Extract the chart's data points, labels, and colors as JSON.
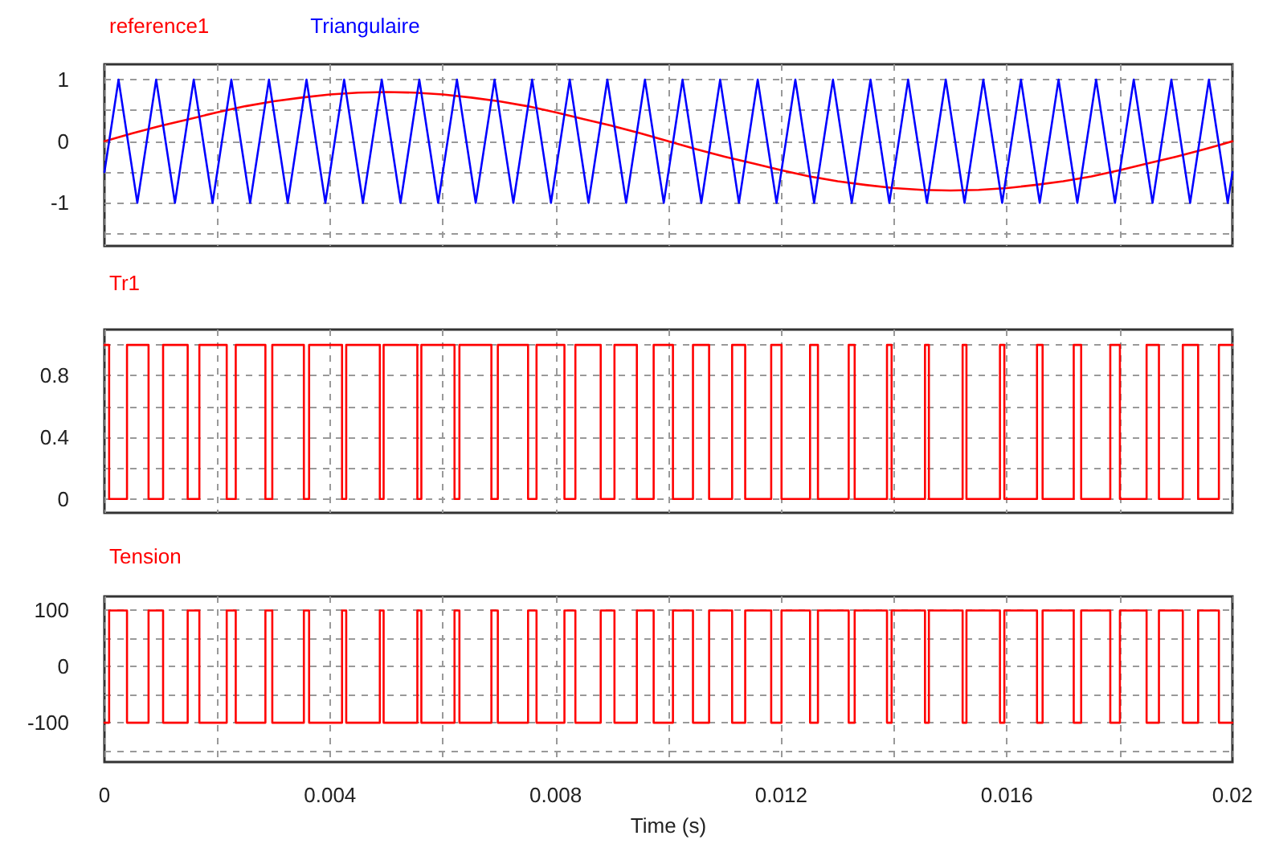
{
  "chart_data": [
    {
      "type": "line",
      "legend": "top left",
      "grid": true,
      "tick_labels": "y",
      "line_style": "solid",
      "xlim": [
        0,
        0.02
      ],
      "xticks": [
        0,
        {
          "value": 0.002,
          "label": null
        },
        {
          "value": 0.004,
          "label": null
        },
        {
          "value": 0.006,
          "label": null
        },
        {
          "value": 0.008,
          "label": null
        },
        {
          "value": 0.01,
          "label": null
        },
        {
          "value": 0.012,
          "label": null
        },
        {
          "value": 0.014,
          "label": null
        },
        {
          "value": 0.016,
          "label": null
        },
        {
          "value": 0.018,
          "label": null
        },
        {
          "value": 0.02,
          "label": null
        }
      ],
      "ylim": [
        -1.7,
        1.25
      ],
      "yticks": [
        {
          "value": -1.5,
          "label": null
        },
        -1,
        {
          "value": -0.5,
          "label": null
        },
        0,
        {
          "value": 0.5,
          "label": null
        },
        1
      ],
      "series": [
        {
          "name": "reference1",
          "color": "#ff0000",
          "x": [
            0,
            0.0005,
            0.001,
            0.0015,
            0.002,
            0.0025,
            0.003,
            0.0035,
            0.004,
            0.0045,
            0.005,
            0.0055,
            0.006,
            0.0065,
            0.007,
            0.0075,
            0.008,
            0.0085,
            0.009,
            0.0095,
            0.01,
            0.0105,
            0.011,
            0.0115,
            0.012,
            0.0125,
            0.013,
            0.0135,
            0.014,
            0.0145,
            0.015,
            0.0155,
            0.016,
            0.0165,
            0.017,
            0.0175,
            0.018,
            0.0185,
            0.019,
            0.0195,
            0.02
          ],
          "values": [
            0,
            0.13,
            0.25,
            0.36,
            0.47,
            0.57,
            0.65,
            0.71,
            0.76,
            0.79,
            0.8,
            0.79,
            0.76,
            0.71,
            0.65,
            0.57,
            0.47,
            0.36,
            0.25,
            0.13,
            0,
            -0.13,
            -0.25,
            -0.36,
            -0.47,
            -0.57,
            -0.65,
            -0.71,
            -0.76,
            -0.79,
            -0.8,
            -0.79,
            -0.76,
            -0.71,
            -0.65,
            -0.57,
            -0.47,
            -0.36,
            -0.25,
            -0.13,
            0
          ]
        },
        {
          "name": "Triangulaire",
          "color": "#0000ff",
          "x": [
            0,
            0.00025,
            0.000583,
            0.000917,
            0.00125,
            0.001583,
            0.001917,
            0.00225,
            0.002583,
            0.002917,
            0.00325,
            0.003583,
            0.003917,
            0.00425,
            0.004583,
            0.004917,
            0.00525,
            0.005583,
            0.005917,
            0.00625,
            0.006583,
            0.006917,
            0.00725,
            0.007583,
            0.007917,
            0.00825,
            0.008583,
            0.008917,
            0.00925,
            0.009583,
            0.009917,
            0.01025,
            0.010583,
            0.010917,
            0.01125,
            0.011583,
            0.011917,
            0.01225,
            0.012583,
            0.012917,
            0.01325,
            0.013583,
            0.013917,
            0.01425,
            0.014583,
            0.014917,
            0.01525,
            0.015583,
            0.015917,
            0.01625,
            0.016583,
            0.016917,
            0.01725,
            0.017583,
            0.017917,
            0.01825,
            0.018583,
            0.018917,
            0.01925,
            0.019583,
            0.019917,
            0.02
          ],
          "values": [
            -0.5,
            1,
            -1,
            1,
            -1,
            1,
            -1,
            1,
            -1,
            1,
            -1,
            1,
            -1,
            1,
            -1,
            1,
            -1,
            1,
            -1,
            1,
            -1,
            1,
            -1,
            1,
            -1,
            1,
            -1,
            1,
            -1,
            1,
            -1,
            1,
            -1,
            1,
            -1,
            1,
            -1,
            1,
            -1,
            1,
            -1,
            1,
            -1,
            1,
            -1,
            1,
            -1,
            1,
            -1,
            1,
            -1,
            1,
            -1,
            1,
            -1,
            1,
            -1,
            1,
            -1,
            1,
            -1,
            -0.5
          ]
        }
      ]
    },
    {
      "type": "step",
      "legend": "top left",
      "grid": true,
      "tick_labels": "y",
      "line_style": "solid",
      "xlim": [
        0,
        0.02
      ],
      "xticks": [
        0,
        {
          "value": 0.002,
          "label": null
        },
        {
          "value": 0.004,
          "label": null
        },
        {
          "value": 0.006,
          "label": null
        },
        {
          "value": 0.008,
          "label": null
        },
        {
          "value": 0.01,
          "label": null
        },
        {
          "value": 0.012,
          "label": null
        },
        {
          "value": 0.014,
          "label": null
        },
        {
          "value": 0.016,
          "label": null
        },
        {
          "value": 0.018,
          "label": null
        },
        {
          "value": 0.02,
          "label": null
        }
      ],
      "ylim": [
        -0.09,
        1.1
      ],
      "yticks": [
        0,
        {
          "value": 0.2,
          "label": null
        },
        0.4,
        {
          "value": 0.6,
          "label": null
        },
        0.8,
        {
          "value": 1,
          "label": null
        }
      ],
      "x": [
        0,
        8.3e-05,
        0.0004,
        0.000782,
        0.00104,
        0.001476,
        0.001683,
        0.002168,
        0.002328,
        0.002854,
        0.002976,
        0.003536,
        0.003629,
        0.004213,
        0.004287,
        0.004883,
        0.00495,
        0.005548,
        0.005619,
        0.006207,
        0.006294,
        0.006861,
        0.006975,
        0.007511,
        0.007661,
        0.008156,
        0.00835,
        0.008799,
        0.009043,
        0.00944,
        0.009738,
        0.01008,
        0.010435,
        0.010721,
        0.011129,
        0.011361,
        0.011822,
        0.012005,
        0.012511,
        0.012651,
        0.013196,
        0.013302,
        0.013875,
        0.013957,
        0.014549,
        0.014618,
        0.015216,
        0.015284,
        0.015878,
        0.015956,
        0.016535,
        0.016634,
        0.017186,
        0.017318,
        0.017834,
        0.018005,
        0.018478,
        0.018697,
        0.01912,
        0.019392,
        0.01976,
        0.02
      ],
      "series": [
        {
          "name": "Tr1",
          "color": "#ff0000",
          "values": [
            1,
            0,
            1,
            0,
            1,
            0,
            1,
            0,
            1,
            0,
            1,
            0,
            1,
            0,
            1,
            0,
            1,
            0,
            1,
            0,
            1,
            0,
            1,
            0,
            1,
            0,
            1,
            0,
            1,
            0,
            1,
            0,
            1,
            0,
            1,
            0,
            1,
            0,
            1,
            0,
            1,
            0,
            1,
            0,
            1,
            0,
            1,
            0,
            1,
            0,
            1,
            0,
            1,
            0,
            1,
            0,
            1,
            0,
            1,
            0,
            1,
            1
          ]
        }
      ]
    },
    {
      "type": "step",
      "legend": "top left",
      "grid": true,
      "line_style": "solid",
      "xlabel": "Time (s)",
      "xlim": [
        0,
        0.02
      ],
      "xticks": [
        0,
        {
          "value": 0.002,
          "label": null
        },
        0.004,
        {
          "value": 0.006,
          "label": null
        },
        0.008,
        {
          "value": 0.01,
          "label": null
        },
        0.012,
        {
          "value": 0.014,
          "label": null
        },
        0.016,
        {
          "value": 0.018,
          "label": null
        },
        0.02
      ],
      "ylim": [
        -170,
        125
      ],
      "yticks": [
        {
          "value": -150,
          "label": null
        },
        -100,
        {
          "value": -50,
          "label": null
        },
        0,
        {
          "value": 50,
          "label": null
        },
        100
      ],
      "x": [
        0,
        8.3e-05,
        0.0004,
        0.000782,
        0.00104,
        0.001476,
        0.001683,
        0.002168,
        0.002328,
        0.002854,
        0.002976,
        0.003536,
        0.003629,
        0.004213,
        0.004287,
        0.004883,
        0.00495,
        0.005548,
        0.005619,
        0.006207,
        0.006294,
        0.006861,
        0.006975,
        0.007511,
        0.007661,
        0.008156,
        0.00835,
        0.008799,
        0.009043,
        0.00944,
        0.009738,
        0.01008,
        0.010435,
        0.010721,
        0.011129,
        0.011361,
        0.011822,
        0.012005,
        0.012511,
        0.012651,
        0.013196,
        0.013302,
        0.013875,
        0.013957,
        0.014549,
        0.014618,
        0.015216,
        0.015284,
        0.015878,
        0.015956,
        0.016535,
        0.016634,
        0.017186,
        0.017318,
        0.017834,
        0.018005,
        0.018478,
        0.018697,
        0.01912,
        0.019392,
        0.01976,
        0.02
      ],
      "series": [
        {
          "name": "Tension",
          "color": "#ff0000",
          "values": [
            -100,
            100,
            -100,
            100,
            -100,
            100,
            -100,
            100,
            -100,
            100,
            -100,
            100,
            -100,
            100,
            -100,
            100,
            -100,
            100,
            -100,
            100,
            -100,
            100,
            -100,
            100,
            -100,
            100,
            -100,
            100,
            -100,
            100,
            -100,
            100,
            -100,
            100,
            -100,
            100,
            -100,
            100,
            -100,
            100,
            -100,
            100,
            -100,
            100,
            -100,
            100,
            -100,
            100,
            -100,
            100,
            -100,
            100,
            -100,
            100,
            -100,
            100,
            -100,
            100,
            -100,
            100,
            -100,
            -100
          ]
        }
      ]
    }
  ]
}
